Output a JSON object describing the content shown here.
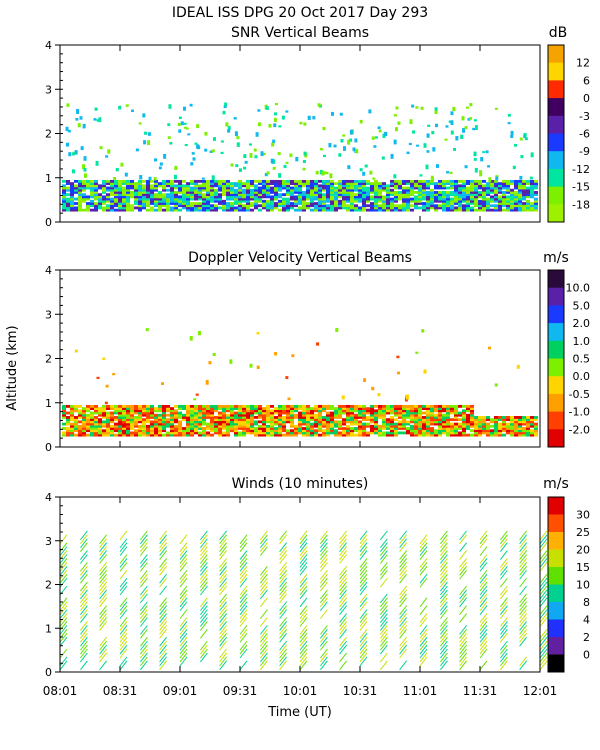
{
  "figure": {
    "title": "IDEAL ISS DPG  20 Oct 2017 Day 293",
    "xlabel": "Time (UT)",
    "shared_ylabel": "Altitude (km)"
  },
  "chart_data": [
    {
      "type": "heatmap",
      "title": "SNR Vertical Beams",
      "unit": "dB",
      "xlim": [
        "08:01",
        "12:01"
      ],
      "ylim": [
        0,
        4
      ],
      "yticks": [
        0,
        1,
        2,
        3,
        4
      ],
      "colorbar": {
        "labels": [
          "12",
          "6",
          "0",
          "-3",
          "-6",
          "-9",
          "-12",
          "-15",
          "-18"
        ],
        "colors": [
          "#f5a300",
          "#ffd500",
          "#ff2a00",
          "#400060",
          "#5a20a8",
          "#1a3aff",
          "#10b8f0",
          "#00e5a0",
          "#7df000",
          "#9cf000"
        ]
      },
      "regions": [
        {
          "t0": 0,
          "t1": 1,
          "z0": 0.25,
          "z1": 1.0,
          "values": [
            "#7df000",
            "#00e5a0",
            "#10b8f0",
            "#1a3aff",
            "#5a20a8"
          ]
        },
        {
          "t0": 0,
          "t1": 1,
          "z0": 1.0,
          "z1": 2.5,
          "values": [
            "#7df000",
            "#00e5a0",
            "#10b8f0"
          ]
        }
      ]
    },
    {
      "type": "heatmap",
      "title": "Doppler Velocity Vertical Beams",
      "unit": "m/s",
      "xlim": [
        "08:01",
        "12:01"
      ],
      "ylim": [
        0,
        4
      ],
      "yticks": [
        0,
        1,
        2,
        3,
        4
      ],
      "colorbar": {
        "labels": [
          "10.0",
          "5.0",
          "2.0",
          "1.0",
          "0.5",
          "0.0",
          "-0.5",
          "-1.0",
          "-2.0"
        ],
        "colors": [
          "#2a0a3a",
          "#5a20a8",
          "#1a3aff",
          "#10b8f0",
          "#00d060",
          "#7df000",
          "#ffd500",
          "#ffa000",
          "#ff4000",
          "#e00000"
        ]
      },
      "regions": [
        {
          "t0": 0,
          "t1": 1,
          "z0": 0.3,
          "z1": 1.0,
          "values": [
            "#ffd500",
            "#ffa000",
            "#ff4000",
            "#7df000",
            "#00e5a0"
          ]
        }
      ]
    },
    {
      "type": "wind-barbs",
      "title": "Winds (10 minutes)",
      "unit": "m/s",
      "xlim": [
        "08:01",
        "12:01"
      ],
      "ylim": [
        0,
        4
      ],
      "yticks": [
        0,
        1,
        2,
        3,
        4
      ],
      "xticks": [
        "08:01",
        "08:31",
        "09:01",
        "09:31",
        "10:01",
        "10:31",
        "11:01",
        "11:31",
        "12:01"
      ],
      "colorbar": {
        "labels": [
          "30",
          "25",
          "20",
          "15",
          "10",
          "8",
          "4",
          "2",
          "0"
        ],
        "colors": [
          "#e00000",
          "#ff5000",
          "#ffb000",
          "#c8e000",
          "#60e000",
          "#00d090",
          "#10a8f0",
          "#2030ff",
          "#6020a0",
          "#000000"
        ]
      },
      "profiles_hours": [
        0.0,
        0.17,
        0.33,
        0.5,
        0.67,
        0.83,
        1.0,
        1.17,
        1.33,
        1.5,
        1.67,
        1.83,
        2.0,
        2.17,
        2.33,
        2.5,
        2.67,
        2.83,
        3.0,
        3.17,
        3.33,
        3.5,
        3.67,
        3.83,
        4.0
      ]
    }
  ]
}
